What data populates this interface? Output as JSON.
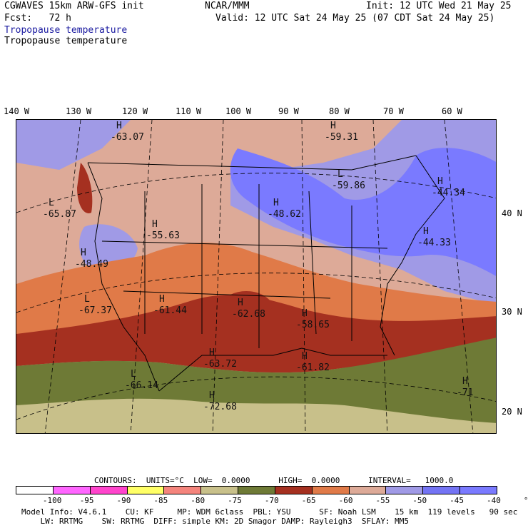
{
  "header": {
    "model": "CGWAVES 15km ARW-GFS init",
    "org": "NCAR/MMM",
    "init": "Init: 12 UTC Wed 21 May 25",
    "fcst": "Fcst:   72 h",
    "valid": "Valid: 12 UTC Sat 24 May 25 (07 CDT Sat 24 May 25)",
    "field1": "Tropopause temperature",
    "field2": "Tropopause temperature"
  },
  "axes": {
    "lon_labels": [
      "140 W",
      "130 W",
      "120 W",
      "110 W",
      "100 W",
      "90 W",
      "80 W",
      "70 W",
      "60 W"
    ],
    "lat_labels": [
      "40 N",
      "30 N",
      "20 N"
    ]
  },
  "map_labels": [
    {
      "letter": "H",
      "value": "-63.07"
    },
    {
      "letter": "H",
      "value": "-59.31"
    },
    {
      "letter": "L",
      "value": "-59.86"
    },
    {
      "letter": "H",
      "value": "-44.34"
    },
    {
      "letter": "L",
      "value": "-65.87"
    },
    {
      "letter": "H",
      "value": "-48.62"
    },
    {
      "letter": "H",
      "value": "-55.63"
    },
    {
      "letter": "H",
      "value": "-44.33"
    },
    {
      "letter": "H",
      "value": "-48.49"
    },
    {
      "letter": "L",
      "value": "-67.37"
    },
    {
      "letter": "H",
      "value": "-61.44"
    },
    {
      "letter": "H",
      "value": "-62.68"
    },
    {
      "letter": "H",
      "value": "-58.65"
    },
    {
      "letter": "H",
      "value": "-63.72"
    },
    {
      "letter": "H",
      "value": "-61.82"
    },
    {
      "letter": "L",
      "value": "-66.14"
    },
    {
      "letter": "H",
      "value": "-72.68"
    },
    {
      "letter": "H",
      "value": "-71"
    }
  ],
  "contours_line": {
    "text": "CONTOURS:  UNITS=°C  LOW=  0.0000      HIGH=  0.0000      INTERVAL=   1000.0"
  },
  "colorbar": {
    "colors": [
      "#ffffff",
      "#ff66ff",
      "#ff44cc",
      "#ffff66",
      "#f4847c",
      "#c8c08a",
      "#6e7a36",
      "#a53020",
      "#e07a48",
      "#ddaa98",
      "#a09ae6",
      "#7474f4",
      "#7a7aff",
      "#7070f0"
    ],
    "labels": [
      "-100",
      "-95",
      "-90",
      "-85",
      "-80",
      "-75",
      "-70",
      "-65",
      "-60",
      "-55",
      "-50",
      "-45",
      "-40",
      "°C"
    ]
  },
  "footer": {
    "line1": "Model Info: V4.6.1    CU: KF     MP: WDM 6class  PBL: YSU      SF: Noah LSM    15 km  119 levels   90 sec",
    "line2": "    LW: RRTMG    SW: RRTMG  DIFF: simple KM: 2D Smagor DAMP: Rayleigh3  SFLAY: MM5"
  }
}
